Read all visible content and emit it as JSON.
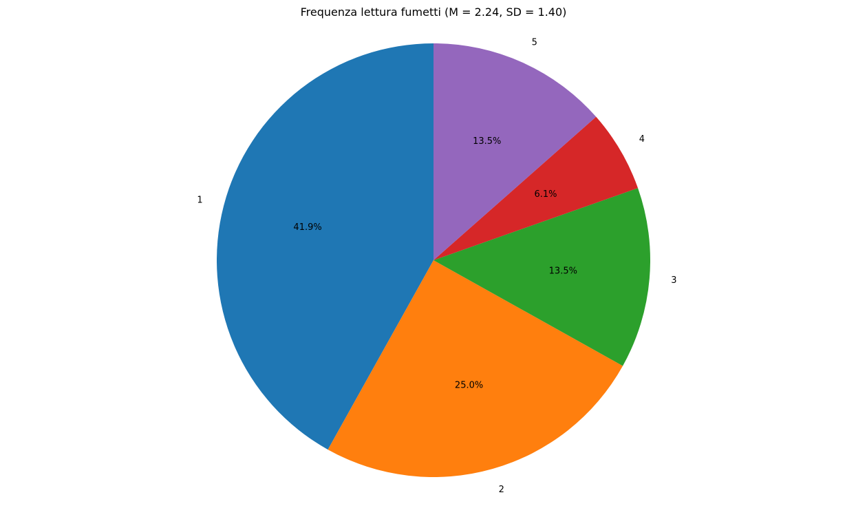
{
  "chart_data": {
    "type": "pie",
    "title": "Frequenza lettura fumetti (M = 2.24, SD = 1.40)",
    "categories": [
      "1",
      "2",
      "3",
      "4",
      "5"
    ],
    "values": [
      41.9,
      25.0,
      13.5,
      6.1,
      13.5
    ],
    "percent_labels": [
      "41.9%",
      "25.0%",
      "13.5%",
      "6.1%",
      "13.5%"
    ],
    "colors": [
      "#1f77b4",
      "#ff7f0e",
      "#2ca02c",
      "#d62728",
      "#9467bd"
    ],
    "start_angle_deg": 90,
    "direction": "counterclockwise",
    "legend": "none"
  }
}
